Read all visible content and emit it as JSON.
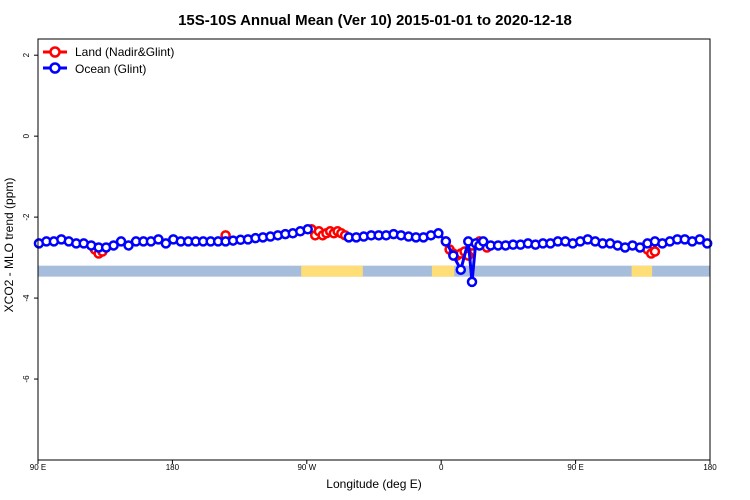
{
  "chart_data": {
    "type": "line",
    "title": "15S-10S Annual Mean (Ver 10)   2015-01-01 to 2020-12-18",
    "xlabel": "Longitude (deg E)",
    "ylabel": "XCO2 - MLO trend (ppm)",
    "xlim": [
      90,
      450
    ],
    "ylim": [
      -8,
      2.4
    ],
    "x_ticks": [
      {
        "value": 90,
        "label": "90 E"
      },
      {
        "value": 162,
        "label": "180"
      },
      {
        "value": 234,
        "label": "90 W"
      },
      {
        "value": 306,
        "label": "0"
      },
      {
        "value": 378,
        "label": "90 E"
      },
      {
        "value": 450,
        "label": "180"
      }
    ],
    "y_ticks": [
      {
        "value": 2,
        "label": "2"
      },
      {
        "value": 0,
        "label": "0"
      },
      {
        "value": -2,
        "label": "-2"
      },
      {
        "value": -4,
        "label": "-4"
      },
      {
        "value": -6,
        "label": "-6"
      }
    ],
    "legend_position": "top-left",
    "colors": {
      "land": "#ff0000",
      "ocean": "#0000ff",
      "ocean_band": "#a6bddb",
      "land_band": "#ffdd77"
    },
    "series": [
      {
        "name": "Land (Nadir&Glint)",
        "color": "#ff0000",
        "x": [
          120.5,
          122.5,
          124.5,
          190.5,
          236.5,
          238.5,
          240.5,
          242.5,
          244.5,
          246.5,
          248.5,
          250.5,
          252.5,
          254.5,
          308.5,
          310.5,
          312.5,
          314.5,
          316.5,
          318.5,
          320.5,
          322.5,
          326.5,
          330.5,
          416.5,
          418.5,
          420.5
        ],
        "y": [
          -2.8,
          -2.9,
          -2.85,
          -2.45,
          -2.3,
          -2.45,
          -2.35,
          -2.45,
          -2.4,
          -2.35,
          -2.4,
          -2.35,
          -2.4,
          -2.45,
          -2.6,
          -2.8,
          -2.9,
          -2.95,
          -2.9,
          -2.85,
          -2.95,
          -2.7,
          -2.6,
          -2.75,
          -2.8,
          -2.9,
          -2.85
        ]
      },
      {
        "name": "Ocean (Glint)",
        "color": "#0000ff",
        "x": [
          90.5,
          94.5,
          98.5,
          102.5,
          106.5,
          110.5,
          114.5,
          118.5,
          122.5,
          126.5,
          130.5,
          134.5,
          138.5,
          142.5,
          146.5,
          150.5,
          154.5,
          158.5,
          162.5,
          166.5,
          170.5,
          174.5,
          178.5,
          182.5,
          186.5,
          190.5,
          194.5,
          198.5,
          202.5,
          206.5,
          210.5,
          214.5,
          218.5,
          222.5,
          226.5,
          230.5,
          234.5,
          256.5,
          260.5,
          264.5,
          268.5,
          272.5,
          276.5,
          280.5,
          284.5,
          288.5,
          292.5,
          296.5,
          300.5,
          304.5,
          308.5,
          312.5,
          316.5,
          320.5,
          322.5,
          324.5,
          326.5,
          328.5,
          332.5,
          336.5,
          340.5,
          344.5,
          348.5,
          352.5,
          356.5,
          360.5,
          364.5,
          368.5,
          372.5,
          376.5,
          380.5,
          384.5,
          388.5,
          392.5,
          396.5,
          400.5,
          404.5,
          408.5,
          412.5,
          416.5,
          420.5,
          424.5,
          428.5,
          432.5,
          436.5,
          440.5,
          444.5,
          448.5
        ],
        "y": [
          -2.65,
          -2.6,
          -2.6,
          -2.55,
          -2.6,
          -2.65,
          -2.65,
          -2.7,
          -2.75,
          -2.75,
          -2.7,
          -2.6,
          -2.7,
          -2.6,
          -2.6,
          -2.6,
          -2.55,
          -2.65,
          -2.55,
          -2.6,
          -2.6,
          -2.6,
          -2.6,
          -2.6,
          -2.6,
          -2.6,
          -2.58,
          -2.56,
          -2.55,
          -2.52,
          -2.5,
          -2.48,
          -2.45,
          -2.42,
          -2.4,
          -2.35,
          -2.3,
          -2.5,
          -2.5,
          -2.48,
          -2.45,
          -2.45,
          -2.45,
          -2.42,
          -2.45,
          -2.48,
          -2.5,
          -2.5,
          -2.45,
          -2.4,
          -2.6,
          -2.95,
          -3.3,
          -2.6,
          -3.6,
          -2.65,
          -2.7,
          -2.6,
          -2.7,
          -2.7,
          -2.7,
          -2.68,
          -2.68,
          -2.65,
          -2.68,
          -2.65,
          -2.65,
          -2.6,
          -2.6,
          -2.65,
          -2.6,
          -2.55,
          -2.6,
          -2.65,
          -2.65,
          -2.7,
          -2.75,
          -2.7,
          -2.75,
          -2.65,
          -2.6,
          -2.65,
          -2.6,
          -2.55,
          -2.55,
          -2.6,
          -2.55,
          -2.65
        ]
      }
    ],
    "surface_bands": {
      "y_top": -3.2,
      "y_bottom": -3.47,
      "land_segments": [
        [
          231,
          264
        ],
        [
          301,
          313
        ],
        [
          408,
          419
        ]
      ]
    }
  }
}
